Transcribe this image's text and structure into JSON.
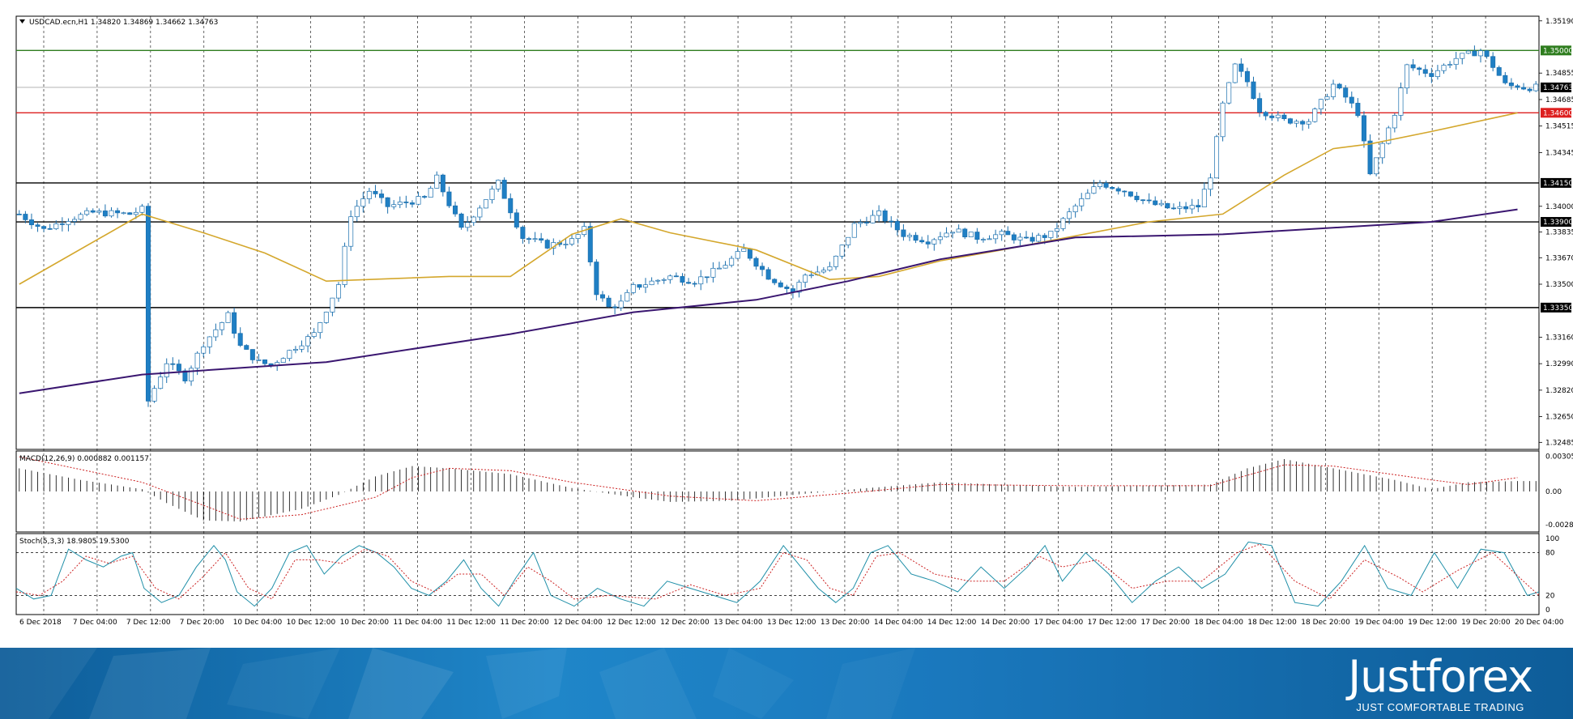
{
  "header": {
    "symbol_info": "USDCAD.ecn,H1  1.34820 1.34869 1.34662 1.34763"
  },
  "colors": {
    "bull": "#ffffff",
    "bear": "#1f7fc4",
    "candle_outline": "#1a6fae",
    "ma_fast": "#d4a72c",
    "ma_slow": "#3a1670",
    "resistance": "#2e7d1e",
    "current": "#888888",
    "support_red": "#dd1f1f",
    "level": "#000000",
    "macd_hist": "#000000",
    "macd_signal": "#cc2222",
    "stoch_main": "#1f8fa8",
    "stoch_signal": "#cc2222"
  },
  "main_axis": {
    "tick_labels": [
      "1.35190",
      "1.34855",
      "1.34685",
      "1.34515",
      "1.34345",
      "1.34000",
      "1.33835",
      "1.33670",
      "1.33500",
      "1.33160",
      "1.32990",
      "1.32820",
      "1.32650",
      "1.32485"
    ],
    "boxes": [
      {
        "label": "1.35000",
        "color": "#2e7d1e"
      },
      {
        "label": "1.34763",
        "color": "#000000"
      },
      {
        "label": "1.34600",
        "color": "#dd1f1f"
      },
      {
        "label": "1.34150",
        "color": "#000000"
      },
      {
        "label": "1.33900",
        "color": "#000000"
      },
      {
        "label": "1.33350",
        "color": "#000000"
      }
    ]
  },
  "time_axis": [
    "6 Dec 2018",
    "7 Dec 04:00",
    "7 Dec 12:00",
    "7 Dec 20:00",
    "10 Dec 04:00",
    "10 Dec 12:00",
    "10 Dec 20:00",
    "11 Dec 04:00",
    "11 Dec 12:00",
    "11 Dec 20:00",
    "12 Dec 04:00",
    "12 Dec 12:00",
    "12 Dec 20:00",
    "13 Dec 04:00",
    "13 Dec 12:00",
    "13 Dec 20:00",
    "14 Dec 04:00",
    "14 Dec 12:00",
    "14 Dec 20:00",
    "17 Dec 04:00",
    "17 Dec 12:00",
    "17 Dec 20:00",
    "18 Dec 04:00",
    "18 Dec 12:00",
    "18 Dec 20:00",
    "19 Dec 04:00",
    "19 Dec 12:00",
    "19 Dec 20:00",
    "20 Dec 04:00"
  ],
  "macd": {
    "label": "MACD(12,26,9) 0.000882 0.001157",
    "tick_labels": [
      "0.003059",
      "0.00",
      "-0.002855"
    ]
  },
  "stoch": {
    "label": "Stoch(5,3,3) 18.9805 19.5300",
    "tick_labels": [
      "100",
      "80",
      "20",
      "0"
    ]
  },
  "brand": {
    "name": "Justforex",
    "tagline": "JUST COMFORTABLE TRADING"
  },
  "chart_data": [
    {
      "type": "candlestick",
      "title": "USDCAD.ecn,H1",
      "ohlc_last": {
        "open": 1.3482,
        "high": 1.34869,
        "low": 1.34662,
        "close": 1.34763
      },
      "y_range": [
        1.3244,
        1.3522
      ],
      "candle_count": 248,
      "x_ticks": [
        "6 Dec 2018",
        "7 Dec 04:00",
        "7 Dec 12:00",
        "7 Dec 20:00",
        "10 Dec 04:00",
        "10 Dec 12:00",
        "10 Dec 20:00",
        "11 Dec 04:00",
        "11 Dec 12:00",
        "11 Dec 20:00",
        "12 Dec 04:00",
        "12 Dec 12:00",
        "12 Dec 20:00",
        "13 Dec 04:00",
        "13 Dec 12:00",
        "13 Dec 20:00",
        "14 Dec 04:00",
        "14 Dec 12:00",
        "14 Dec 20:00",
        "17 Dec 04:00",
        "17 Dec 12:00",
        "17 Dec 20:00",
        "18 Dec 04:00",
        "18 Dec 12:00",
        "18 Dec 20:00",
        "19 Dec 04:00",
        "19 Dec 12:00",
        "19 Dec 20:00",
        "20 Dec 04:00"
      ],
      "close_path": [
        [
          0,
          1.3395
        ],
        [
          4,
          1.3385
        ],
        [
          8,
          1.3392
        ],
        [
          12,
          1.3396
        ],
        [
          18,
          1.3395
        ],
        [
          20,
          1.3398
        ],
        [
          21,
          1.3275
        ],
        [
          24,
          1.33
        ],
        [
          27,
          1.329
        ],
        [
          30,
          1.3312
        ],
        [
          34,
          1.333
        ],
        [
          36,
          1.331
        ],
        [
          39,
          1.33
        ],
        [
          41,
          1.3298
        ],
        [
          45,
          1.331
        ],
        [
          48,
          1.3318
        ],
        [
          52,
          1.335
        ],
        [
          54,
          1.3395
        ],
        [
          57,
          1.341
        ],
        [
          60,
          1.34
        ],
        [
          66,
          1.3405
        ],
        [
          68,
          1.3418
        ],
        [
          72,
          1.3385
        ],
        [
          75,
          1.34
        ],
        [
          78,
          1.3415
        ],
        [
          82,
          1.338
        ],
        [
          86,
          1.3375
        ],
        [
          90,
          1.3378
        ],
        [
          92,
          1.3385
        ],
        [
          94,
          1.3345
        ],
        [
          96,
          1.3335
        ],
        [
          98,
          1.3338
        ],
        [
          100,
          1.3348
        ],
        [
          106,
          1.3355
        ],
        [
          110,
          1.3352
        ],
        [
          114,
          1.336
        ],
        [
          118,
          1.3372
        ],
        [
          122,
          1.3355
        ],
        [
          126,
          1.3345
        ],
        [
          128,
          1.3356
        ],
        [
          132,
          1.336
        ],
        [
          136,
          1.3388
        ],
        [
          140,
          1.3395
        ],
        [
          144,
          1.3382
        ],
        [
          148,
          1.3378
        ],
        [
          152,
          1.3385
        ],
        [
          156,
          1.338
        ],
        [
          160,
          1.3382
        ],
        [
          164,
          1.3378
        ],
        [
          168,
          1.3382
        ],
        [
          172,
          1.34
        ],
        [
          176,
          1.3415
        ],
        [
          180,
          1.341
        ],
        [
          184,
          1.3402
        ],
        [
          188,
          1.3398
        ],
        [
          192,
          1.34
        ],
        [
          194,
          1.342
        ],
        [
          196,
          1.3465
        ],
        [
          198,
          1.349
        ],
        [
          200,
          1.348
        ],
        [
          202,
          1.3462
        ],
        [
          206,
          1.3455
        ],
        [
          210,
          1.3455
        ],
        [
          214,
          1.3478
        ],
        [
          216,
          1.347
        ],
        [
          218,
          1.346
        ],
        [
          220,
          1.342
        ],
        [
          222,
          1.344
        ],
        [
          224,
          1.346
        ],
        [
          226,
          1.349
        ],
        [
          230,
          1.3485
        ],
        [
          234,
          1.3495
        ],
        [
          238,
          1.35
        ],
        [
          240,
          1.349
        ],
        [
          242,
          1.3478
        ],
        [
          244,
          1.34763
        ]
      ],
      "series": [
        {
          "name": "MA fast",
          "values": [
            [
              0,
              1.335
            ],
            [
              20,
              1.3395
            ],
            [
              30,
              1.3383
            ],
            [
              40,
              1.337
            ],
            [
              50,
              1.3352
            ],
            [
              70,
              1.3355
            ],
            [
              80,
              1.3355
            ],
            [
              90,
              1.3382
            ],
            [
              98,
              1.3392
            ],
            [
              106,
              1.3383
            ],
            [
              120,
              1.3372
            ],
            [
              132,
              1.3353
            ],
            [
              140,
              1.3355
            ],
            [
              150,
              1.3365
            ],
            [
              160,
              1.3372
            ],
            [
              172,
              1.3381
            ],
            [
              184,
              1.339
            ],
            [
              196,
              1.3395
            ],
            [
              206,
              1.342
            ],
            [
              214,
              1.3437
            ],
            [
              220,
              1.344
            ],
            [
              230,
              1.3448
            ],
            [
              244,
              1.346
            ]
          ]
        },
        {
          "name": "MA slow",
          "values": [
            [
              0,
              1.328
            ],
            [
              20,
              1.3292
            ],
            [
              50,
              1.33
            ],
            [
              80,
              1.3318
            ],
            [
              100,
              1.3332
            ],
            [
              120,
              1.334
            ],
            [
              135,
              1.3352
            ],
            [
              150,
              1.3366
            ],
            [
              172,
              1.338
            ],
            [
              196,
              1.3382
            ],
            [
              230,
              1.339
            ],
            [
              244,
              1.3398
            ]
          ]
        }
      ],
      "levels": [
        {
          "price": 1.35,
          "kind": "resistance"
        },
        {
          "price": 1.34763,
          "kind": "current"
        },
        {
          "price": 1.346,
          "kind": "red"
        },
        {
          "price": 1.3415,
          "kind": "level"
        },
        {
          "price": 1.339,
          "kind": "level"
        },
        {
          "price": 1.3335,
          "kind": "level"
        }
      ]
    },
    {
      "type": "histogram",
      "title": "MACD(12,26,9)",
      "macd": 0.000882,
      "signal": 0.001157,
      "y_range": [
        -0.0035,
        0.0035
      ],
      "path": [
        [
          0,
          0.002
        ],
        [
          10,
          0.001
        ],
        [
          20,
          0.0002
        ],
        [
          24,
          -0.001
        ],
        [
          30,
          -0.0025
        ],
        [
          36,
          -0.0026
        ],
        [
          46,
          -0.0015
        ],
        [
          52,
          -0.0003
        ],
        [
          58,
          0.0013
        ],
        [
          64,
          0.0022
        ],
        [
          70,
          0.002
        ],
        [
          80,
          0.0015
        ],
        [
          90,
          0.0003
        ],
        [
          100,
          -0.0005
        ],
        [
          106,
          -0.0009
        ],
        [
          116,
          -0.0008
        ],
        [
          128,
          -0.0002
        ],
        [
          136,
          0.0002
        ],
        [
          150,
          0.0008
        ],
        [
          160,
          0.0006
        ],
        [
          172,
          0.0004
        ],
        [
          184,
          0.0005
        ],
        [
          194,
          0.0006
        ],
        [
          200,
          0.002
        ],
        [
          206,
          0.0028
        ],
        [
          214,
          0.002
        ],
        [
          224,
          0.001
        ],
        [
          230,
          0.0002
        ],
        [
          236,
          0.0008
        ],
        [
          244,
          0.0009
        ]
      ],
      "signal_path": [
        [
          0,
          0.003
        ],
        [
          20,
          0.0008
        ],
        [
          30,
          -0.0012
        ],
        [
          36,
          -0.0024
        ],
        [
          46,
          -0.002
        ],
        [
          58,
          -0.0005
        ],
        [
          64,
          0.0012
        ],
        [
          70,
          0.002
        ],
        [
          80,
          0.0018
        ],
        [
          90,
          0.0008
        ],
        [
          106,
          -0.0004
        ],
        [
          120,
          -0.0008
        ],
        [
          136,
          -0.0001
        ],
        [
          150,
          0.0006
        ],
        [
          172,
          0.0005
        ],
        [
          194,
          0.0005
        ],
        [
          206,
          0.0023
        ],
        [
          214,
          0.0022
        ],
        [
          230,
          0.001
        ],
        [
          236,
          0.0006
        ],
        [
          244,
          0.0012
        ]
      ]
    },
    {
      "type": "line",
      "title": "Stoch(5,3,3)",
      "main": 18.9805,
      "signal": 19.53,
      "y_range": [
        0,
        100
      ],
      "levels": [
        80,
        20
      ],
      "main_path": [
        [
          0,
          30
        ],
        [
          3,
          15
        ],
        [
          6,
          20
        ],
        [
          9,
          85
        ],
        [
          12,
          70
        ],
        [
          15,
          60
        ],
        [
          18,
          75
        ],
        [
          20,
          80
        ],
        [
          22,
          30
        ],
        [
          25,
          10
        ],
        [
          28,
          20
        ],
        [
          31,
          60
        ],
        [
          34,
          90
        ],
        [
          36,
          70
        ],
        [
          38,
          25
        ],
        [
          41,
          5
        ],
        [
          44,
          30
        ],
        [
          47,
          80
        ],
        [
          50,
          90
        ],
        [
          53,
          50
        ],
        [
          56,
          75
        ],
        [
          59,
          90
        ],
        [
          62,
          80
        ],
        [
          65,
          60
        ],
        [
          68,
          30
        ],
        [
          71,
          20
        ],
        [
          74,
          40
        ],
        [
          77,
          70
        ],
        [
          80,
          30
        ],
        [
          83,
          5
        ],
        [
          86,
          45
        ],
        [
          89,
          80
        ],
        [
          92,
          20
        ],
        [
          96,
          5
        ],
        [
          100,
          30
        ],
        [
          104,
          15
        ],
        [
          108,
          5
        ],
        [
          112,
          40
        ],
        [
          116,
          30
        ],
        [
          120,
          20
        ],
        [
          124,
          10
        ],
        [
          128,
          40
        ],
        [
          132,
          90
        ],
        [
          135,
          60
        ],
        [
          138,
          30
        ],
        [
          141,
          10
        ],
        [
          144,
          30
        ],
        [
          147,
          80
        ],
        [
          150,
          90
        ],
        [
          154,
          50
        ],
        [
          158,
          40
        ],
        [
          162,
          25
        ],
        [
          166,
          60
        ],
        [
          170,
          30
        ],
        [
          174,
          60
        ],
        [
          177,
          90
        ],
        [
          180,
          40
        ],
        [
          184,
          80
        ],
        [
          188,
          50
        ],
        [
          192,
          10
        ],
        [
          196,
          40
        ],
        [
          200,
          60
        ],
        [
          204,
          30
        ],
        [
          208,
          50
        ],
        [
          212,
          95
        ],
        [
          216,
          90
        ],
        [
          220,
          10
        ],
        [
          224,
          5
        ],
        [
          228,
          40
        ],
        [
          232,
          90
        ],
        [
          236,
          30
        ],
        [
          240,
          20
        ],
        [
          244,
          80
        ],
        [
          248,
          30
        ],
        [
          252,
          85
        ],
        [
          256,
          80
        ],
        [
          260,
          20
        ],
        [
          262,
          25
        ]
      ],
      "signal_path": [
        [
          0,
          25
        ],
        [
          4,
          20
        ],
        [
          8,
          40
        ],
        [
          12,
          75
        ],
        [
          16,
          65
        ],
        [
          20,
          75
        ],
        [
          24,
          30
        ],
        [
          28,
          15
        ],
        [
          32,
          45
        ],
        [
          36,
          80
        ],
        [
          40,
          30
        ],
        [
          44,
          15
        ],
        [
          48,
          70
        ],
        [
          52,
          70
        ],
        [
          56,
          65
        ],
        [
          60,
          85
        ],
        [
          64,
          75
        ],
        [
          68,
          40
        ],
        [
          72,
          25
        ],
        [
          76,
          50
        ],
        [
          80,
          50
        ],
        [
          84,
          20
        ],
        [
          88,
          60
        ],
        [
          92,
          40
        ],
        [
          96,
          15
        ],
        [
          102,
          20
        ],
        [
          110,
          15
        ],
        [
          116,
          35
        ],
        [
          122,
          20
        ],
        [
          128,
          30
        ],
        [
          132,
          80
        ],
        [
          136,
          70
        ],
        [
          140,
          30
        ],
        [
          144,
          20
        ],
        [
          148,
          75
        ],
        [
          152,
          80
        ],
        [
          158,
          50
        ],
        [
          164,
          40
        ],
        [
          170,
          40
        ],
        [
          176,
          75
        ],
        [
          180,
          60
        ],
        [
          186,
          70
        ],
        [
          192,
          30
        ],
        [
          198,
          40
        ],
        [
          204,
          40
        ],
        [
          210,
          80
        ],
        [
          214,
          92
        ],
        [
          220,
          40
        ],
        [
          226,
          15
        ],
        [
          232,
          70
        ],
        [
          238,
          45
        ],
        [
          242,
          25
        ],
        [
          248,
          55
        ],
        [
          254,
          80
        ],
        [
          260,
          35
        ],
        [
          262,
          20
        ]
      ]
    }
  ]
}
